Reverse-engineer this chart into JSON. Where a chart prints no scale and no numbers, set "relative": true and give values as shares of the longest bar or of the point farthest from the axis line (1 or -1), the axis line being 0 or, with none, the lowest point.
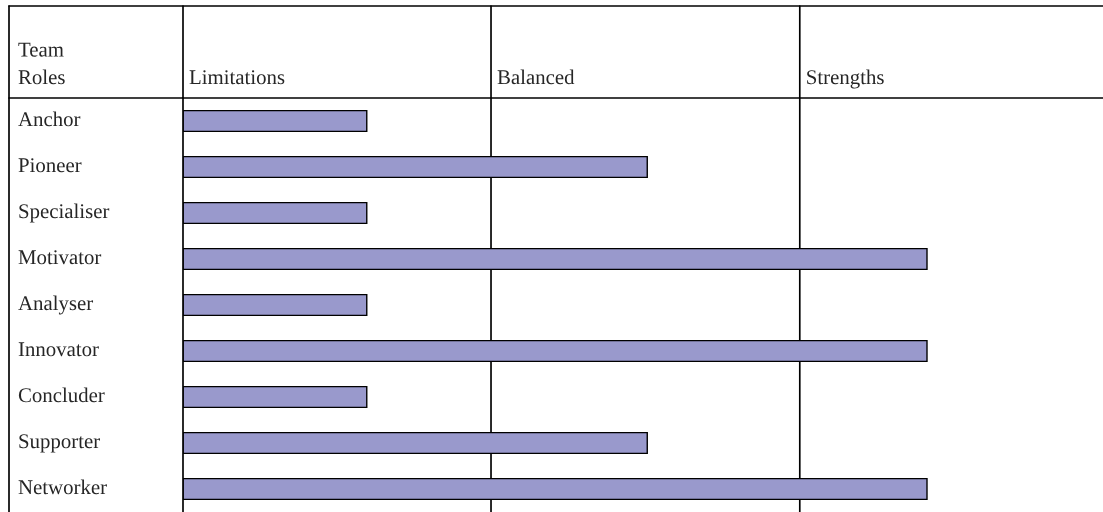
{
  "chart_data": {
    "type": "bar",
    "orientation": "horizontal",
    "relative": true,
    "ylabel": "Team\nRoles",
    "categories": [
      "Anchor",
      "Pioneer",
      "Specialiser",
      "Motivator",
      "Analyser",
      "Innovator",
      "Concluder",
      "Supporter",
      "Networker"
    ],
    "values": [
      0.247,
      0.624,
      0.247,
      1,
      0.247,
      1,
      0.247,
      0.624,
      1
    ],
    "color": "#9999cc",
    "annotations": [
      "Limitations",
      "Balanced",
      "Strengths"
    ],
    "ref_lines": [
      {
        "axis": "x",
        "value": 0.414,
        "color": "#000000"
      },
      {
        "axis": "x",
        "value": 0.829,
        "color": "#000000"
      }
    ],
    "grid": false,
    "legend": false
  }
}
